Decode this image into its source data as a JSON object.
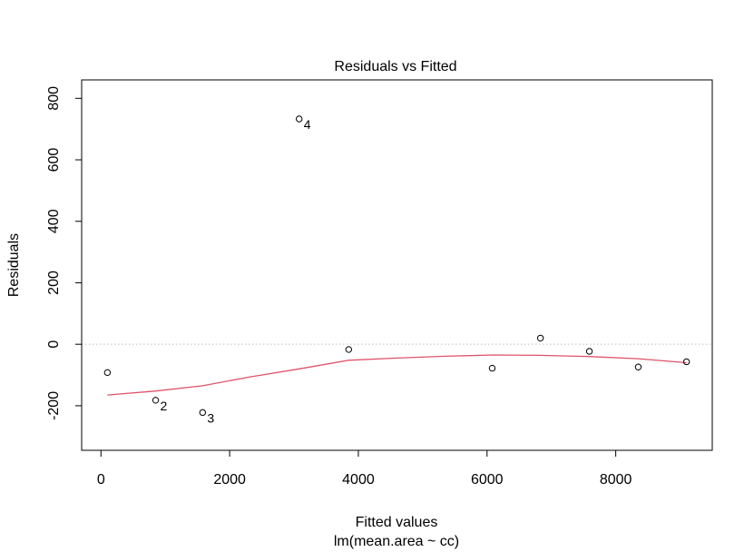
{
  "chart_data": {
    "type": "scatter",
    "title": "Residuals vs Fitted",
    "xlabel": "Fitted values",
    "ylabel": "Residuals",
    "subtitle": "lm(mean.area ~ cc)",
    "xlim": [
      -300,
      9500
    ],
    "ylim": [
      -345,
      860
    ],
    "x_ticks": [
      0,
      2000,
      4000,
      6000,
      8000
    ],
    "y_ticks": [
      -200,
      0,
      200,
      400,
      600,
      800
    ],
    "points": [
      {
        "x": 100,
        "y": -92,
        "label": ""
      },
      {
        "x": 850,
        "y": -182,
        "label": "2"
      },
      {
        "x": 1580,
        "y": -222,
        "label": "3"
      },
      {
        "x": 3080,
        "y": 733,
        "label": "4"
      },
      {
        "x": 3850,
        "y": -17,
        "label": ""
      },
      {
        "x": 6080,
        "y": -78,
        "label": ""
      },
      {
        "x": 6830,
        "y": 20,
        "label": ""
      },
      {
        "x": 7590,
        "y": -23,
        "label": ""
      },
      {
        "x": 8350,
        "y": -74,
        "label": ""
      },
      {
        "x": 9100,
        "y": -57,
        "label": ""
      }
    ],
    "smoother": {
      "color": "#DF536B",
      "x": [
        100,
        850,
        1580,
        2300,
        3080,
        3850,
        4600,
        5340,
        6080,
        6830,
        7590,
        8350,
        9100
      ],
      "y": [
        -165,
        -152,
        -135,
        -107,
        -80,
        -52,
        -45,
        -39,
        -35,
        -36,
        -40,
        -47,
        -60
      ]
    },
    "reference_line": {
      "y": 0,
      "style": "dotted",
      "color": "#BEBEBE"
    },
    "grid": false,
    "legend": "none"
  }
}
